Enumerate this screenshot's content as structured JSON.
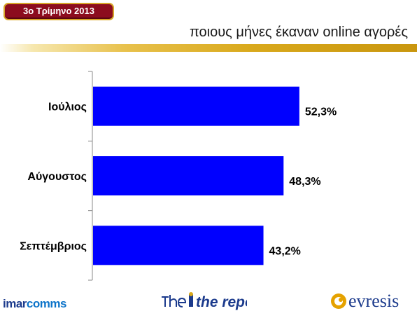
{
  "header": {
    "badge_label": "3ο Τρίμηνο 2013",
    "title": "ποιους μήνες έκαναν online αγορές"
  },
  "chart_data": {
    "type": "bar",
    "orientation": "horizontal",
    "categories": [
      "Ιούλιος",
      "Αύγουστος",
      "Σεπτέμβριος"
    ],
    "values": [
      52.3,
      48.3,
      43.2
    ],
    "value_labels": [
      "52,3%",
      "48,3%",
      "43,2%"
    ],
    "bar_color": "#0000ff",
    "xlim": [
      0,
      80
    ],
    "grid": false,
    "legend": "none"
  },
  "footer": {
    "logo_imarcomms_a": "imar",
    "logo_imarcomms_b": "comms",
    "logo_thereport": "the report",
    "logo_evresis": "evresis",
    "brand_blue": "#1b3a8c",
    "accent_gold": "#d9a91c"
  }
}
